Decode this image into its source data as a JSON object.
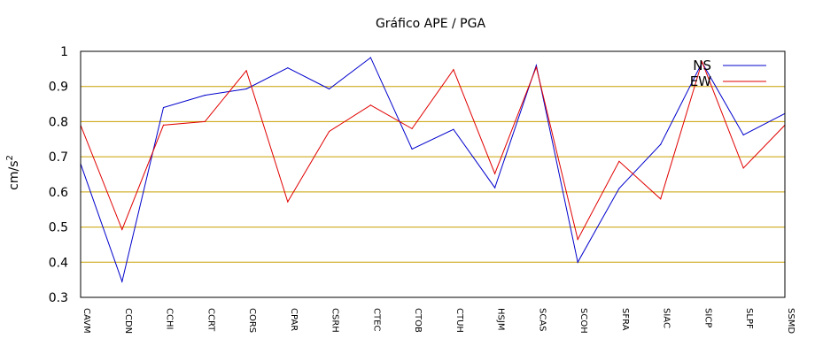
{
  "chart_data": {
    "type": "line",
    "title": "Gráfico  APE / PGA",
    "ylabel": "cm/s",
    "ylabel_sup": "2",
    "xlabel": "",
    "ylim": [
      0.3,
      1.0
    ],
    "yticks": [
      0.3,
      0.4,
      0.5,
      0.6,
      0.7,
      0.8,
      0.9,
      1
    ],
    "ytick_labels": [
      "0.3",
      "0.4",
      "0.5",
      "0.6",
      "0.7",
      "0.8",
      "0.9",
      "1"
    ],
    "grid": "horizontal",
    "grid_color": "#c8a000",
    "legend_position": "top-right",
    "categories": [
      "CAVM",
      "CCDN",
      "CCHI",
      "CCRT",
      "CORS",
      "CPAR",
      "CSRH",
      "CTEC",
      "CTOB",
      "CTUH",
      "HSJM",
      "SCAS",
      "SCOH",
      "SFRA",
      "SIAC",
      "SICP",
      "SLPF",
      "SSMD"
    ],
    "series": [
      {
        "name": "NS",
        "color": "#0000cc",
        "values": [
          0.68,
          0.345,
          0.84,
          0.875,
          0.893,
          0.953,
          0.893,
          0.982,
          0.722,
          0.778,
          0.612,
          0.96,
          0.4,
          0.61,
          0.735,
          0.968,
          0.762,
          0.823
        ]
      },
      {
        "name": "EW",
        "color": "#e00000",
        "values": [
          0.79,
          0.493,
          0.79,
          0.8,
          0.945,
          0.572,
          0.772,
          0.847,
          0.78,
          0.948,
          0.652,
          0.955,
          0.465,
          0.687,
          0.58,
          0.97,
          0.668,
          0.79
        ]
      }
    ]
  }
}
